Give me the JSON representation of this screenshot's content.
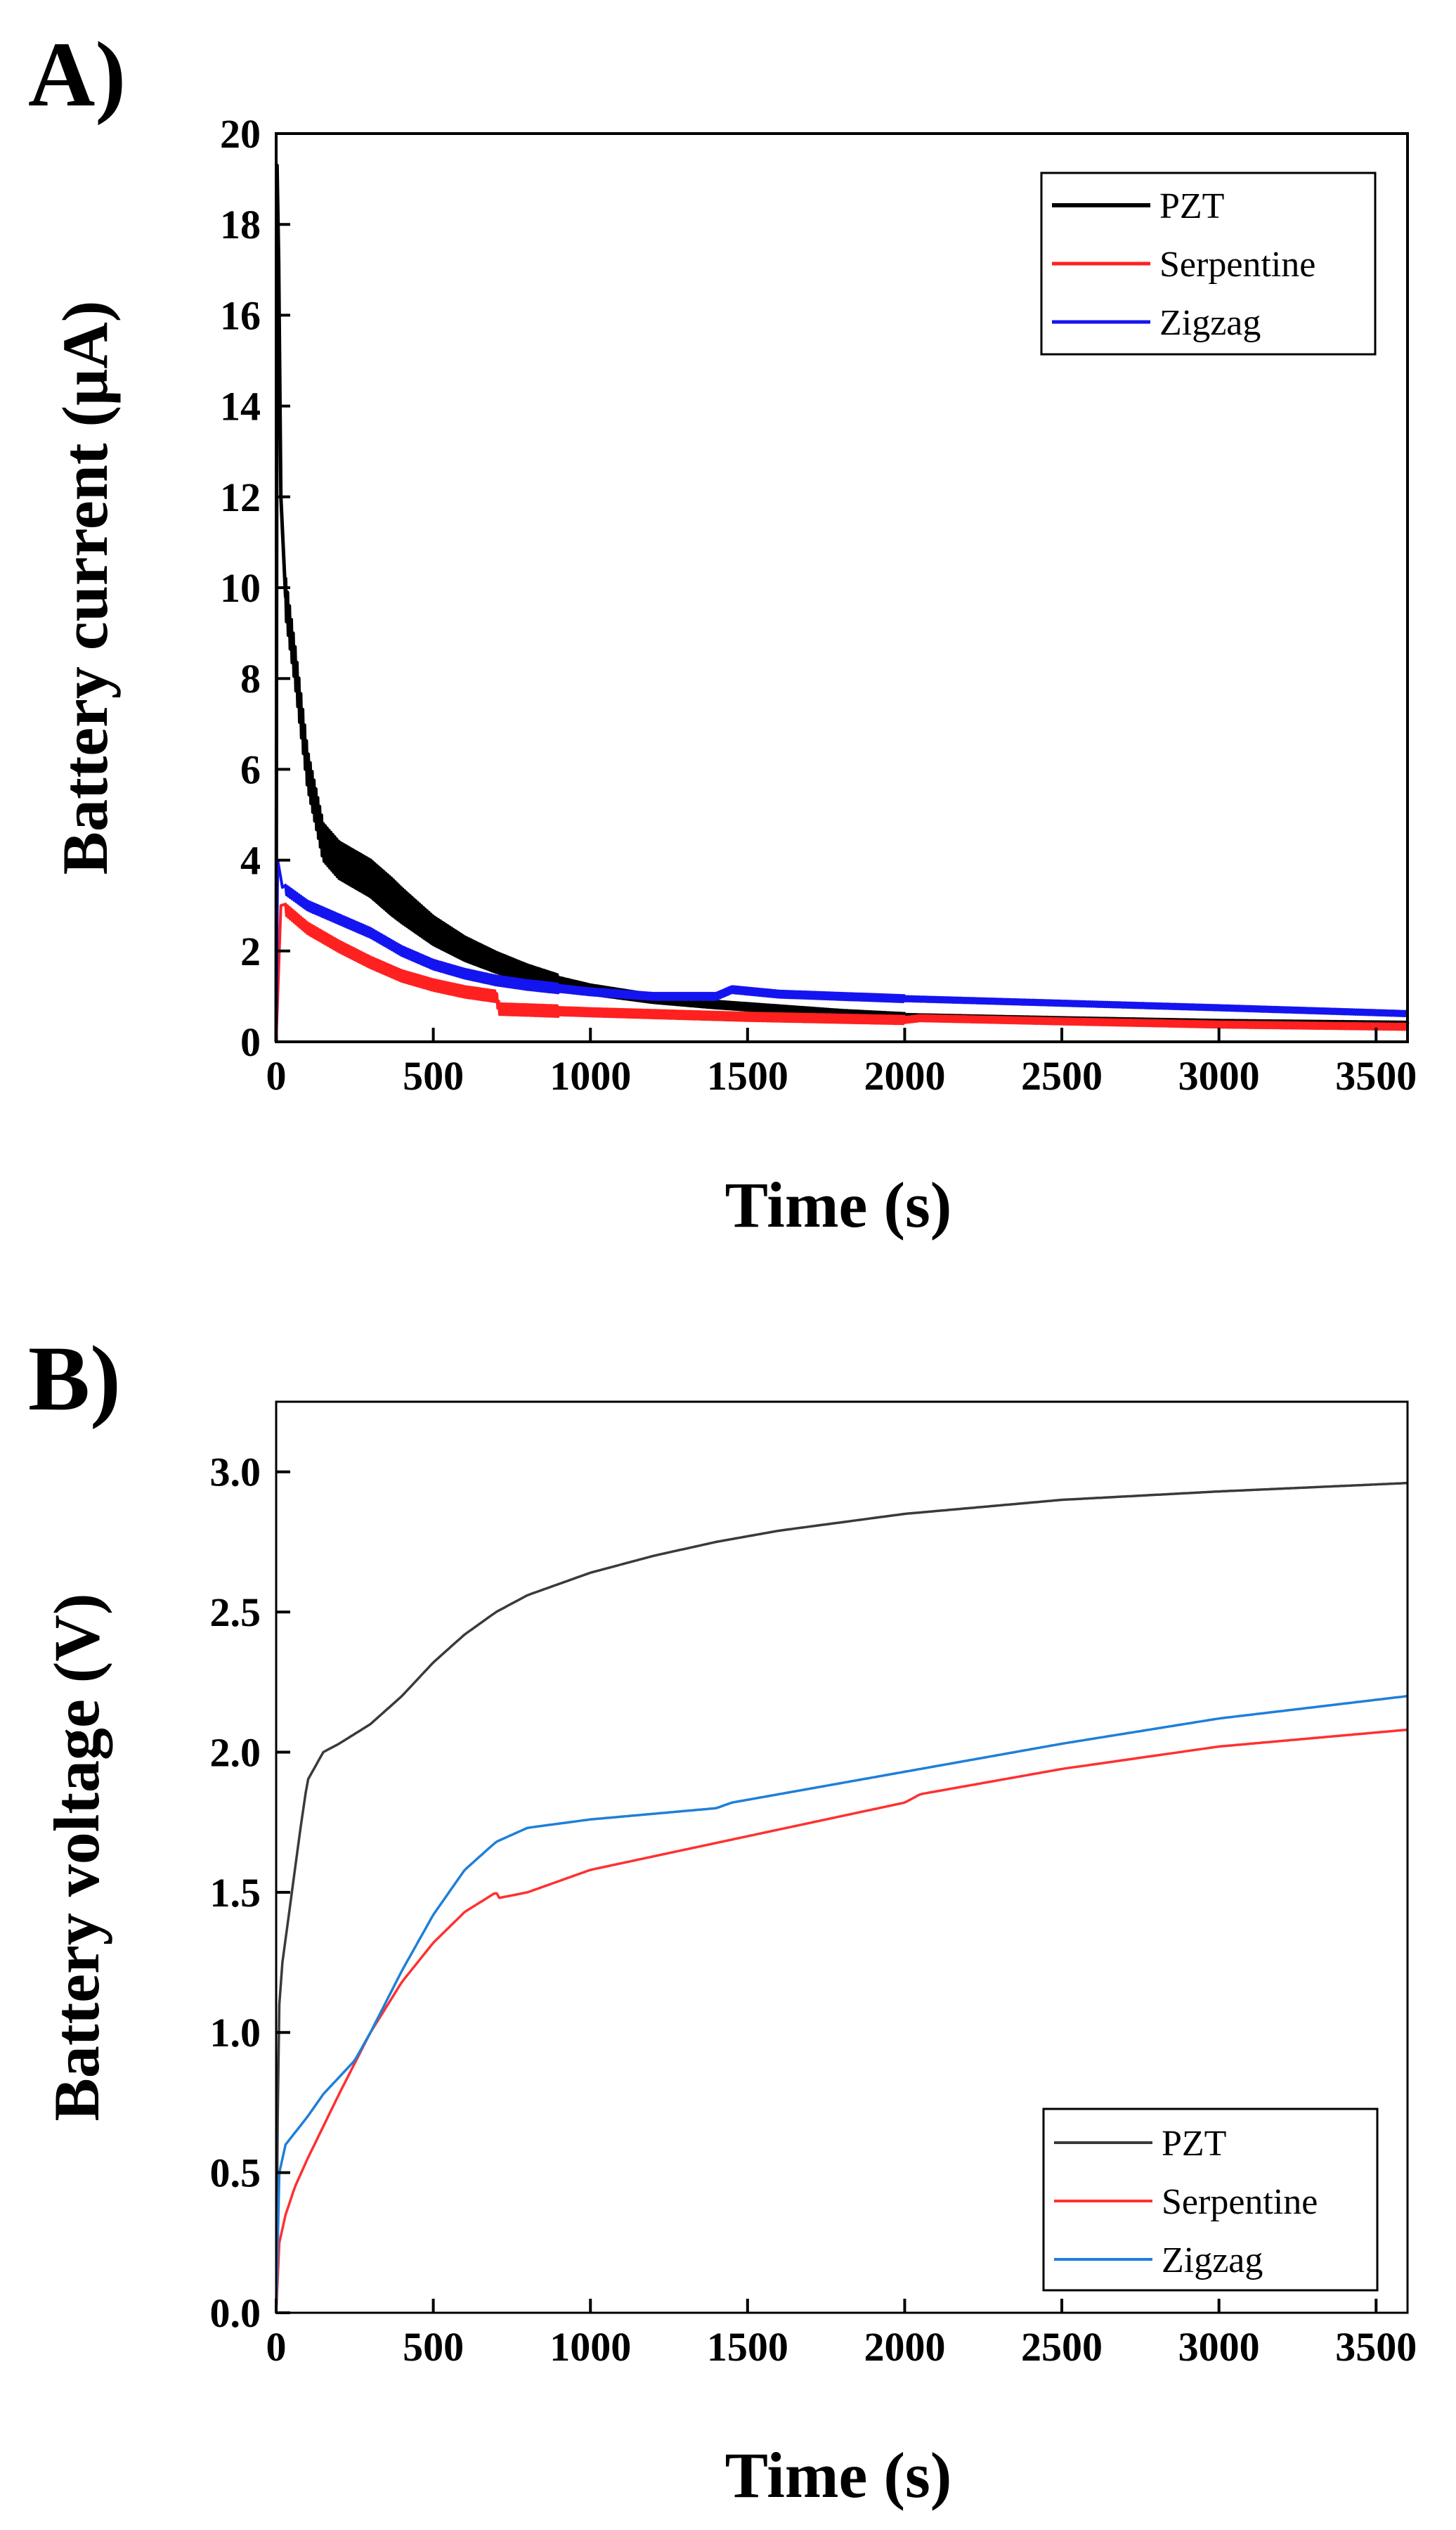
{
  "colors": {
    "panel_a": {
      "PZT": "#000000",
      "Serpentine": "#ff2020",
      "Zigzag": "#1414f0"
    },
    "panel_b": {
      "PZT": "#3a3a3a",
      "Serpentine": "#ff3030",
      "Zigzag": "#1f7fd8"
    }
  },
  "chart_data": [
    {
      "id": "A",
      "panel_label": "A)",
      "type": "line",
      "title": "",
      "xlabel": "Time (s)",
      "ylabel": "Battery current (μA)",
      "xlim": [
        0,
        3600
      ],
      "ylim": [
        0,
        20
      ],
      "xticks": [
        0,
        500,
        1000,
        1500,
        2000,
        2500,
        3000,
        3500
      ],
      "yticks": [
        0,
        2,
        4,
        6,
        8,
        10,
        12,
        14,
        16,
        18,
        20
      ],
      "x_tick_labels": [
        "0",
        "500",
        "1000",
        "1500",
        "2000",
        "2500",
        "3000",
        "3500"
      ],
      "y_tick_labels": [
        "0",
        "2",
        "4",
        "6",
        "8",
        "10",
        "12",
        "14",
        "16",
        "18",
        "20"
      ],
      "grid": false,
      "legend_position": "top-right",
      "series": [
        {
          "name": "PZT",
          "noise_amplitude": 0.25,
          "points": [
            [
              0,
              0
            ],
            [
              3,
              19.3
            ],
            [
              8,
              17.2
            ],
            [
              15,
              12.0
            ],
            [
              30,
              9.8
            ],
            [
              60,
              8.3
            ],
            [
              100,
              6.0
            ],
            [
              150,
              4.4
            ],
            [
              200,
              4.0
            ],
            [
              300,
              3.6
            ],
            [
              400,
              3.0
            ],
            [
              500,
              2.45
            ],
            [
              600,
              2.05
            ],
            [
              700,
              1.75
            ],
            [
              800,
              1.5
            ],
            [
              900,
              1.3
            ],
            [
              1000,
              1.15
            ],
            [
              1200,
              0.95
            ],
            [
              1400,
              0.82
            ],
            [
              1600,
              0.72
            ],
            [
              1800,
              0.62
            ],
            [
              2000,
              0.55
            ],
            [
              2500,
              0.48
            ],
            [
              3000,
              0.42
            ],
            [
              3600,
              0.38
            ]
          ]
        },
        {
          "name": "Serpentine",
          "noise_amplitude": 0.12,
          "points": [
            [
              0,
              0
            ],
            [
              15,
              3.0
            ],
            [
              100,
              2.5
            ],
            [
              200,
              2.1
            ],
            [
              300,
              1.75
            ],
            [
              400,
              1.45
            ],
            [
              500,
              1.25
            ],
            [
              600,
              1.1
            ],
            [
              700,
              1.0
            ],
            [
              710,
              0.72
            ],
            [
              800,
              0.7
            ],
            [
              1000,
              0.65
            ],
            [
              1500,
              0.55
            ],
            [
              2000,
              0.48
            ],
            [
              2050,
              0.52
            ],
            [
              2500,
              0.45
            ],
            [
              3000,
              0.38
            ],
            [
              3600,
              0.33
            ]
          ]
        },
        {
          "name": "Zigzag",
          "noise_amplitude": 0.1,
          "points": [
            [
              0,
              0
            ],
            [
              5,
              4.0
            ],
            [
              20,
              3.4
            ],
            [
              100,
              3.0
            ],
            [
              200,
              2.7
            ],
            [
              300,
              2.4
            ],
            [
              400,
              2.0
            ],
            [
              500,
              1.7
            ],
            [
              600,
              1.5
            ],
            [
              700,
              1.35
            ],
            [
              800,
              1.25
            ],
            [
              1000,
              1.1
            ],
            [
              1200,
              1.0
            ],
            [
              1400,
              1.0
            ],
            [
              1450,
              1.15
            ],
            [
              1600,
              1.05
            ],
            [
              2000,
              0.95
            ],
            [
              2500,
              0.85
            ],
            [
              3000,
              0.75
            ],
            [
              3600,
              0.62
            ]
          ]
        }
      ]
    },
    {
      "id": "B",
      "panel_label": "B)",
      "type": "line",
      "title": "",
      "xlabel": "Time (s)",
      "ylabel": "Battery voltage (V)",
      "xlim": [
        0,
        3600
      ],
      "ylim": [
        0,
        3.25
      ],
      "xticks": [
        0,
        500,
        1000,
        1500,
        2000,
        2500,
        3000,
        3500
      ],
      "yticks": [
        0,
        0.5,
        1.0,
        1.5,
        2.0,
        2.5,
        3.0
      ],
      "x_tick_labels": [
        "0",
        "500",
        "1000",
        "1500",
        "2000",
        "2500",
        "3000",
        "3500"
      ],
      "y_tick_labels": [
        "0.0",
        "0.5",
        "1.0",
        "1.5",
        "2.0",
        "2.5",
        "3.0"
      ],
      "grid": false,
      "legend_position": "bottom-right",
      "series": [
        {
          "name": "PZT",
          "noise_amplitude": 0,
          "points": [
            [
              0,
              0
            ],
            [
              5,
              0.7
            ],
            [
              10,
              1.1
            ],
            [
              20,
              1.25
            ],
            [
              50,
              1.5
            ],
            [
              80,
              1.75
            ],
            [
              100,
              1.9
            ],
            [
              150,
              2.0
            ],
            [
              200,
              2.03
            ],
            [
              300,
              2.1
            ],
            [
              400,
              2.2
            ],
            [
              500,
              2.32
            ],
            [
              600,
              2.42
            ],
            [
              700,
              2.5
            ],
            [
              800,
              2.56
            ],
            [
              900,
              2.6
            ],
            [
              1000,
              2.64
            ],
            [
              1200,
              2.7
            ],
            [
              1400,
              2.75
            ],
            [
              1600,
              2.79
            ],
            [
              1800,
              2.82
            ],
            [
              2000,
              2.85
            ],
            [
              2500,
              2.9
            ],
            [
              3000,
              2.93
            ],
            [
              3600,
              2.96
            ]
          ]
        },
        {
          "name": "Serpentine",
          "noise_amplitude": 0,
          "points": [
            [
              0,
              0
            ],
            [
              10,
              0.25
            ],
            [
              30,
              0.35
            ],
            [
              60,
              0.45
            ],
            [
              100,
              0.55
            ],
            [
              200,
              0.78
            ],
            [
              300,
              1.0
            ],
            [
              400,
              1.18
            ],
            [
              500,
              1.32
            ],
            [
              600,
              1.43
            ],
            [
              700,
              1.5
            ],
            [
              710,
              1.48
            ],
            [
              800,
              1.5
            ],
            [
              1000,
              1.58
            ],
            [
              1500,
              1.7
            ],
            [
              2000,
              1.82
            ],
            [
              2050,
              1.85
            ],
            [
              2500,
              1.94
            ],
            [
              3000,
              2.02
            ],
            [
              3600,
              2.08
            ]
          ]
        },
        {
          "name": "Zigzag",
          "noise_amplitude": 0,
          "points": [
            [
              0,
              0
            ],
            [
              10,
              0.5
            ],
            [
              30,
              0.6
            ],
            [
              100,
              0.7
            ],
            [
              150,
              0.78
            ],
            [
              250,
              0.9
            ],
            [
              300,
              1.0
            ],
            [
              400,
              1.22
            ],
            [
              500,
              1.42
            ],
            [
              600,
              1.58
            ],
            [
              700,
              1.68
            ],
            [
              800,
              1.73
            ],
            [
              1000,
              1.76
            ],
            [
              1400,
              1.8
            ],
            [
              1450,
              1.82
            ],
            [
              2000,
              1.93
            ],
            [
              2500,
              2.03
            ],
            [
              3000,
              2.12
            ],
            [
              3600,
              2.2
            ]
          ]
        }
      ]
    }
  ]
}
